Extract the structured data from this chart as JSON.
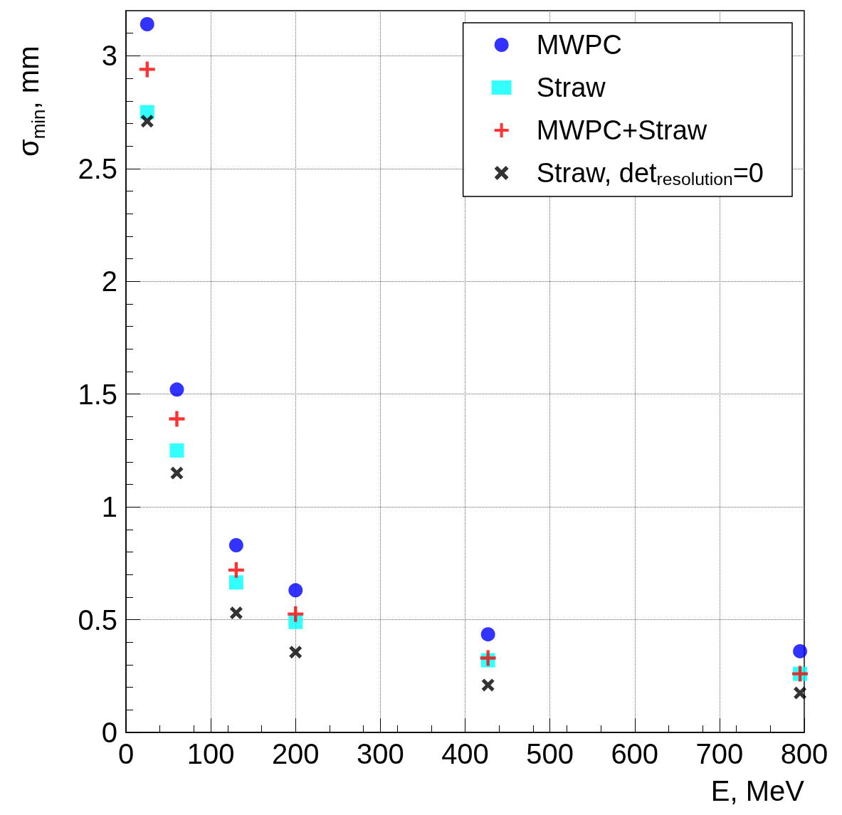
{
  "chart_data": {
    "type": "scatter",
    "xlabel": "E, MeV",
    "ylabel": "σ$_{min}$, mm",
    "x": [
      25,
      60,
      130,
      200,
      427,
      795
    ],
    "series": [
      {
        "name": "MWPC",
        "color": "#0000ff",
        "marker": "circle",
        "values": [
          3.14,
          1.52,
          0.83,
          0.63,
          0.435,
          0.36
        ]
      },
      {
        "name": "Straw",
        "color": "#00ffff",
        "marker": "square",
        "values": [
          2.75,
          1.25,
          0.665,
          0.49,
          0.32,
          0.26
        ]
      },
      {
        "name": "MWPC+Straw",
        "color": "#ff0000",
        "marker": "cross",
        "values": [
          2.94,
          1.39,
          0.72,
          0.525,
          0.33,
          0.26
        ]
      },
      {
        "name": "Straw, det$_{resolution}$=0",
        "color": "#000000",
        "marker": "x",
        "values": [
          2.71,
          1.15,
          0.53,
          0.356,
          0.21,
          0.175
        ]
      }
    ],
    "xlim": [
      0,
      800
    ],
    "xticks": [
      0,
      100,
      200,
      300,
      400,
      500,
      600,
      700,
      800
    ],
    "ylim": [
      0,
      3.2
    ],
    "yticks": [
      0,
      0.5,
      1,
      1.5,
      2,
      2.5,
      3
    ],
    "grid": true,
    "legend": "top right"
  }
}
